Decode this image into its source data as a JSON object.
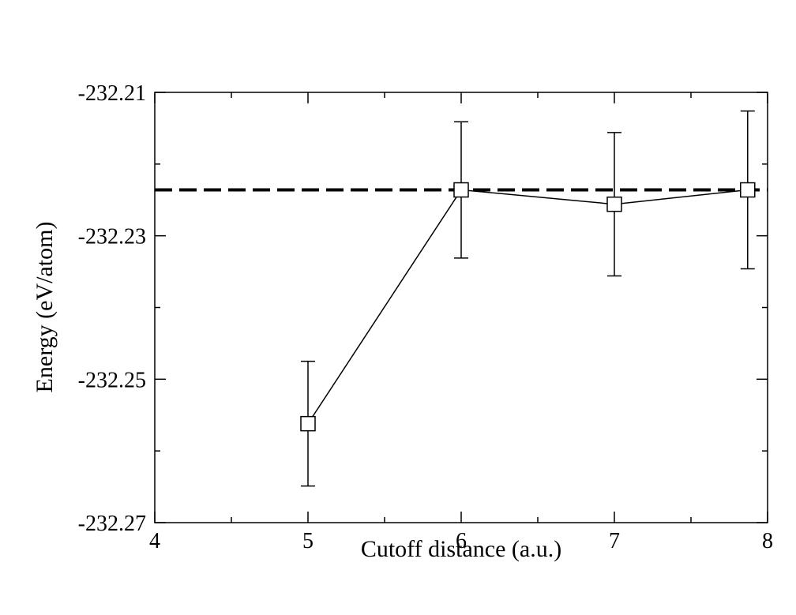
{
  "chart_data": {
    "type": "scatter",
    "xlabel": "Cutoff distance (a.u.)",
    "ylabel": "Energy (eV/atom)",
    "xlim": [
      4,
      8
    ],
    "ylim": [
      -232.27,
      -232.21
    ],
    "x_major_ticks": [
      4,
      5,
      6,
      7,
      8
    ],
    "x_tick_labels": [
      "4",
      "5",
      "6",
      "7",
      "8"
    ],
    "y_major_ticks": [
      -232.27,
      -232.25,
      -232.23,
      -232.21
    ],
    "y_tick_labels": [
      "-232.27",
      "-232.25",
      "-232.23",
      "-232.21"
    ],
    "y_minor_ticks": [
      -232.26,
      -232.24,
      -232.22
    ],
    "x_minor_ticks": [
      4.5,
      5.5,
      6.5,
      7.5
    ],
    "grid": false,
    "legend": "none",
    "series": [
      {
        "marker": "open-square",
        "line": "solid",
        "color": "#000000",
        "x": [
          5,
          6,
          7,
          7.87
        ],
        "y": [
          -232.2562,
          -232.2236,
          -232.2256,
          -232.2236
        ],
        "error": [
          0.0087,
          0.0095,
          0.01,
          0.011
        ]
      }
    ],
    "reference_line": {
      "style": "dashed",
      "color": "#000000",
      "y": -232.2236,
      "x_from": 4,
      "x_to": 8
    }
  }
}
